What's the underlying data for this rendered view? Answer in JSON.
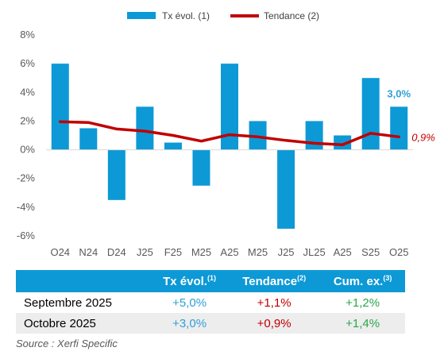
{
  "chart_data": {
    "type": "bar",
    "categories": [
      "O24",
      "N24",
      "D24",
      "J25",
      "F25",
      "M25",
      "A25",
      "M25",
      "J25",
      "JL25",
      "A25",
      "S25",
      "O25"
    ],
    "series": [
      {
        "name": "Tx évol. (1)",
        "type": "bar",
        "color": "#0c99d6",
        "values": [
          6.0,
          1.5,
          -3.5,
          3.0,
          0.5,
          -2.5,
          6.0,
          2.0,
          -5.5,
          2.0,
          1.0,
          5.0,
          3.0
        ]
      },
      {
        "name": "Tendance (2)",
        "type": "line",
        "color": "#c00000",
        "values": [
          1.95,
          1.9,
          1.45,
          1.3,
          1.0,
          0.6,
          1.05,
          0.9,
          0.65,
          0.45,
          0.35,
          1.15,
          0.9
        ]
      }
    ],
    "ylim": [
      -6,
      8
    ],
    "yticks": [
      -6,
      -4,
      -2,
      0,
      2,
      4,
      6,
      8
    ],
    "ytick_labels": [
      "-6%",
      "-4%",
      "-2%",
      "0%",
      "2%",
      "4%",
      "6%",
      "8%"
    ],
    "legend_position": "top-center",
    "grid": false,
    "annotations": [
      {
        "text": "3,0%",
        "series": "Tx évol. (1)",
        "index": 12,
        "color": "#2f9fd8"
      },
      {
        "text": "0,9%",
        "series": "Tendance (2)",
        "index": 12,
        "color": "#c00000"
      }
    ]
  },
  "table": {
    "headers": [
      "",
      "Tx évol.",
      "Tendance",
      "Cum. ex."
    ],
    "header_sups": [
      "",
      "(1)",
      "(2)",
      "(3)"
    ],
    "rows": [
      {
        "label": "Septembre 2025",
        "tx": "+5,0%",
        "trend": "+1,1%",
        "cum": "+1,2%"
      },
      {
        "label": "Octobre 2025",
        "tx": "+3,0%",
        "trend": "+0,9%",
        "cum": "+1,4%"
      }
    ]
  },
  "source": "Source : Xerfi Specific",
  "colors": {
    "bar": "#0c99d6",
    "trend": "#c00000",
    "cum": "#2ba84a",
    "header_bg": "#0c99d6"
  }
}
